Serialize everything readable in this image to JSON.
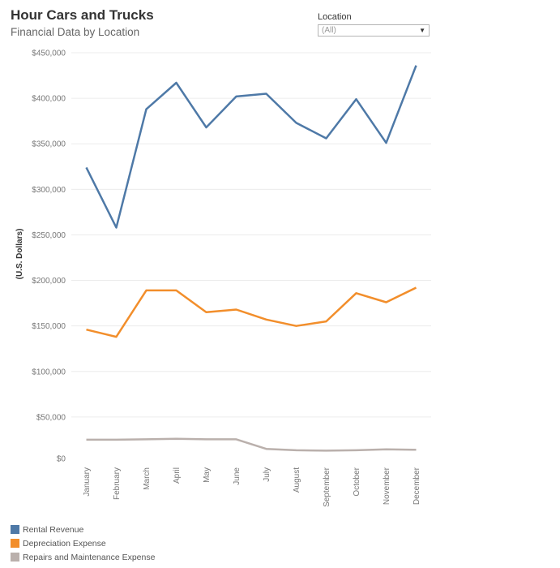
{
  "header": {
    "title": "Hour Cars and Trucks",
    "subtitle": "Financial Data by Location"
  },
  "filter": {
    "label": "Location",
    "value": "(All)",
    "caret_icon": "caret-down-icon"
  },
  "chart_data": {
    "type": "line",
    "title": "Hour Cars and Trucks",
    "subtitle": "Financial Data by Location",
    "xlabel": "",
    "ylabel": "(U.S. Dollars)",
    "categories": [
      "January",
      "February",
      "March",
      "April",
      "May",
      "June",
      "July",
      "August",
      "September",
      "October",
      "November",
      "December"
    ],
    "ylim": [
      0,
      450000
    ],
    "yticks": [
      0,
      50000,
      100000,
      150000,
      200000,
      250000,
      300000,
      350000,
      400000,
      450000
    ],
    "ytick_labels": [
      "$0",
      "$50,000",
      "$100,000",
      "$150,000",
      "$200,000",
      "$250,000",
      "$300,000",
      "$350,000",
      "$400,000",
      "$450,000"
    ],
    "grid": true,
    "legend_position": "bottom-left",
    "series": [
      {
        "name": "Rental Revenue",
        "color": "#4e79a7",
        "values": [
          324000,
          258000,
          388000,
          417000,
          368000,
          402000,
          405000,
          373000,
          356000,
          399000,
          351000,
          436000
        ]
      },
      {
        "name": "Depreciation Expense",
        "color": "#f28e2b",
        "values": [
          146000,
          138000,
          189000,
          189000,
          165000,
          168000,
          157000,
          150000,
          155000,
          186000,
          176000,
          192000
        ]
      },
      {
        "name": "Repairs and Maintenance Expense",
        "color": "#bab0ac",
        "values": [
          25000,
          25000,
          25500,
          26000,
          25500,
          25500,
          15000,
          13500,
          13000,
          13500,
          14500,
          14000
        ]
      }
    ]
  }
}
